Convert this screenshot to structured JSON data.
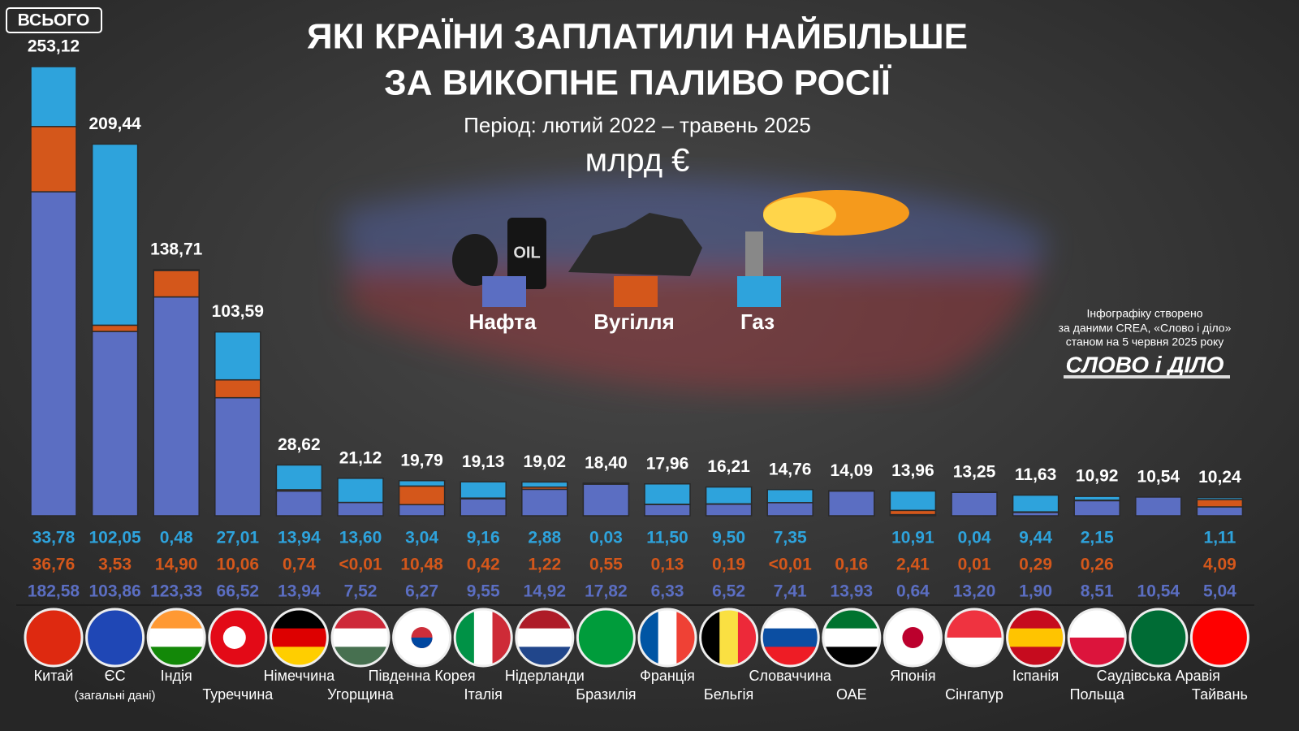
{
  "chart_data": {
    "type": "bar",
    "stacked": true,
    "title_lines": [
      "ЯКІ КРАЇНИ ЗАПЛАТИЛИ НАЙБІЛЬШЕ",
      "ЗА ВИКОПНЕ ПАЛИВО РОСІЇ"
    ],
    "subtitle": "Період: лютий 2022 – травень 2025",
    "unit": "млрд €",
    "total_heading": "ВСЬОГО",
    "credit_lines": [
      "Інфографіку створено",
      "за даними CREA, «Слово і діло»",
      "станом на 5 червня 2025 року"
    ],
    "logo": "СЛОВО і ДІЛО",
    "categories": [
      "Китай",
      "ЄС",
      "Індія",
      "Туреччина",
      "Німеччина",
      "Угорщина",
      "Південна Корея",
      "Італія",
      "Нідерланди",
      "Бразилія",
      "Франція",
      "Бельгія",
      "Словаччина",
      "ОАЕ",
      "Японія",
      "Сінгапур",
      "Іспанія",
      "Польща",
      "Саудівська Аравія",
      "Тайвань"
    ],
    "category_notes": [
      null,
      "(загальні дані)",
      null,
      null,
      null,
      null,
      null,
      null,
      null,
      null,
      null,
      null,
      null,
      null,
      null,
      null,
      null,
      null,
      null,
      null
    ],
    "totals": [
      253.12,
      209.44,
      138.71,
      103.59,
      28.62,
      21.12,
      19.79,
      19.13,
      19.02,
      18.4,
      17.96,
      16.21,
      14.76,
      14.09,
      13.96,
      13.25,
      11.63,
      10.92,
      10.54,
      10.24
    ],
    "total_labels": [
      "253,12",
      "209,44",
      "138,71",
      "103,59",
      "28,62",
      "21,12",
      "19,79",
      "19,13",
      "19,02",
      "18,40",
      "17,96",
      "16,21",
      "14,76",
      "14,09",
      "13,96",
      "13,25",
      "11,63",
      "10,92",
      "10,54",
      "10,24"
    ],
    "series": [
      {
        "name": "Нафта",
        "color": "#5b6ec2",
        "values": [
          182.58,
          103.86,
          123.33,
          66.52,
          13.94,
          7.52,
          6.27,
          9.55,
          14.92,
          17.82,
          6.33,
          6.52,
          7.41,
          13.93,
          0.64,
          13.2,
          1.9,
          8.51,
          10.54,
          5.04
        ],
        "value_labels": [
          "182,58",
          "103,86",
          "123,33",
          "66,52",
          "13,94",
          "7,52",
          "6,27",
          "9,55",
          "14,92",
          "17,82",
          "6,33",
          "6,52",
          "7,41",
          "13,93",
          "0,64",
          "13,20",
          "1,90",
          "8,51",
          "10,54",
          "5,04"
        ]
      },
      {
        "name": "Вугілля",
        "color": "#d4571b",
        "values": [
          36.76,
          3.53,
          14.9,
          10.06,
          0.74,
          0.005,
          10.48,
          0.42,
          1.22,
          0.55,
          0.13,
          0.19,
          0.005,
          0.16,
          2.41,
          0.01,
          0.29,
          0.26,
          null,
          4.09
        ],
        "value_labels": [
          "36,76",
          "3,53",
          "14,90",
          "10,06",
          "0,74",
          "<0,01",
          "10,48",
          "0,42",
          "1,22",
          "0,55",
          "0,13",
          "0,19",
          "<0,01",
          "0,16",
          "2,41",
          "0,01",
          "0,29",
          "0,26",
          null,
          "4,09"
        ]
      },
      {
        "name": "Газ",
        "color": "#2ea3dc",
        "values": [
          33.78,
          102.05,
          0.48,
          27.01,
          13.94,
          13.6,
          3.04,
          9.16,
          2.88,
          0.03,
          11.5,
          9.5,
          7.35,
          null,
          10.91,
          0.04,
          9.44,
          2.15,
          null,
          1.11
        ],
        "value_labels": [
          "33,78",
          "102,05",
          "0,48",
          "27,01",
          "13,94",
          "13,60",
          "3,04",
          "9,16",
          "2,88",
          "0,03",
          "11,50",
          "9,50",
          "7,35",
          null,
          "10,91",
          "0,04",
          "9,44",
          "2,15",
          null,
          "1,11"
        ]
      }
    ]
  }
}
